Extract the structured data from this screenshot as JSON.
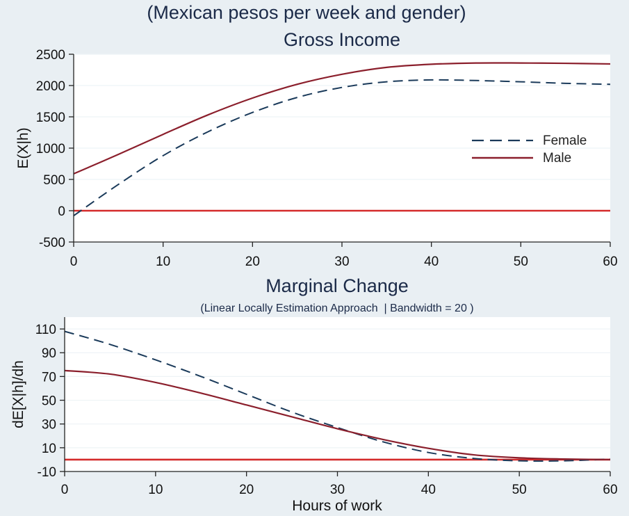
{
  "page": {
    "title": "(Mexican pesos per week and gender)"
  },
  "colors": {
    "background": "#e9eff3",
    "plot_area": "#ffffff",
    "female": "#1a3a5a",
    "male": "#8b1f2c",
    "zero_line": "#d42a2a"
  },
  "chart_data": [
    {
      "type": "line",
      "title": "Gross Income",
      "subtitle": "",
      "xlabel": "",
      "ylabel": "E(X|h)",
      "xlim": [
        0,
        60
      ],
      "ylim": [
        -500,
        2500
      ],
      "xticks": [
        0,
        10,
        20,
        30,
        40,
        50,
        60
      ],
      "yticks": [
        -500,
        0,
        500,
        1000,
        1500,
        2000,
        2500
      ],
      "grid": true,
      "legend": "right",
      "reference_line": 0,
      "x": [
        0,
        5,
        10,
        15,
        20,
        25,
        30,
        35,
        40,
        45,
        50,
        55,
        60
      ],
      "series": [
        {
          "name": "Female",
          "style": "dashed",
          "values": [
            -80,
            420,
            880,
            1260,
            1570,
            1810,
            1970,
            2060,
            2090,
            2080,
            2060,
            2035,
            2020
          ]
        },
        {
          "name": "Male",
          "style": "solid",
          "values": [
            590,
            900,
            1220,
            1530,
            1800,
            2020,
            2180,
            2290,
            2340,
            2360,
            2360,
            2355,
            2345
          ]
        }
      ]
    },
    {
      "type": "line",
      "title": "Marginal Change",
      "subtitle": "(Linear Locally Estimation Approach  | Bandwidth = 20 )",
      "xlabel": "Hours of work",
      "ylabel": "dE[X|h]/dh",
      "xlim": [
        0,
        60
      ],
      "ylim": [
        -10,
        120
      ],
      "xticks": [
        0,
        10,
        20,
        30,
        40,
        50,
        60
      ],
      "yticks": [
        -10,
        10,
        30,
        50,
        70,
        90,
        110
      ],
      "grid": true,
      "legend": "none",
      "reference_line": 0,
      "x": [
        0,
        5,
        10,
        15,
        20,
        25,
        30,
        35,
        40,
        45,
        50,
        55,
        60
      ],
      "series": [
        {
          "name": "Female",
          "style": "dashed",
          "values": [
            108,
            97,
            84,
            70,
            55,
            40,
            27,
            15,
            6,
            1,
            -1,
            -1,
            0.5
          ]
        },
        {
          "name": "Male",
          "style": "solid",
          "values": [
            75,
            72,
            65,
            56,
            46,
            36,
            26,
            17,
            9.5,
            4,
            1.5,
            0.5,
            0
          ]
        }
      ]
    }
  ]
}
